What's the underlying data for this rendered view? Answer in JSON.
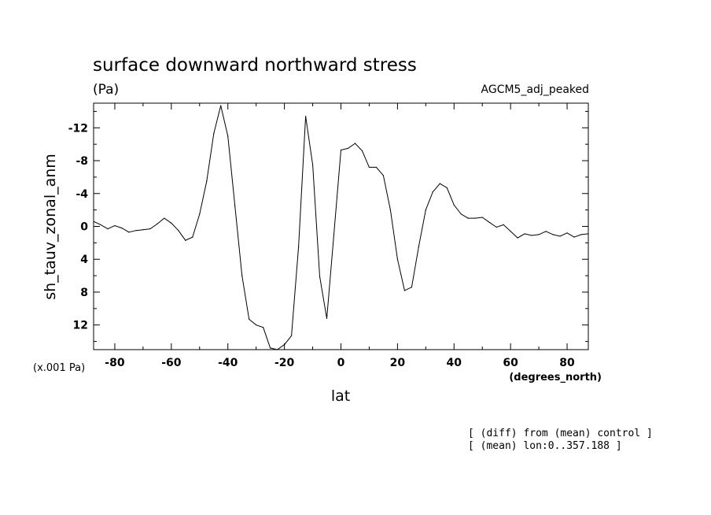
{
  "chart_data": {
    "type": "line",
    "title": "surface downward northward stress",
    "units": "(Pa)",
    "experiment": "AGCM5_adj_peaked",
    "ylabel": "sh_tauv_zonal_anm",
    "yscale_label": "(x.001 Pa)",
    "xlabel": "lat",
    "xunits": "(degrees_north)",
    "notes": [
      "[ (diff) from (mean) control ]",
      "[ (mean) lon:0..357.188 ]"
    ],
    "xlim": [
      -87.5,
      87.5
    ],
    "ylim": [
      15,
      -15
    ],
    "y_inverted": true,
    "xticks": [
      -80,
      -60,
      -40,
      -20,
      0,
      20,
      40,
      60,
      80
    ],
    "xtick_labels": [
      "-80",
      "-60",
      "-40",
      "-20",
      "0",
      "20",
      "40",
      "60",
      "80"
    ],
    "yticks": [
      -12,
      -8,
      -4,
      0,
      4,
      8,
      12
    ],
    "ytick_labels": [
      "-12",
      "-8",
      "-4",
      "0",
      "4",
      "8",
      "12"
    ],
    "series": [
      {
        "x": [
          -87.5,
          -85,
          -82.5,
          -80,
          -77.5,
          -75,
          -72.5,
          -70,
          -67.5,
          -65,
          -62.5,
          -60,
          -57.5,
          -55,
          -52.5,
          -50,
          -47.5,
          -45,
          -42.5,
          -40,
          -37.5,
          -35,
          -32.5,
          -30,
          -27.5,
          -25,
          -22.5,
          -20,
          -17.5,
          -15,
          -12.5,
          -10,
          -7.5,
          -5,
          -2.5,
          0,
          2.5,
          5,
          7.5,
          10,
          12.5,
          15,
          17.5,
          20,
          22.5,
          25,
          27.5,
          30,
          32.5,
          35,
          37.5,
          40,
          42.5,
          45,
          47.5,
          50,
          52.5,
          55,
          57.5,
          60,
          62.5,
          65,
          67.5,
          70,
          72.5,
          75,
          77.5,
          80,
          82.5,
          85,
          87.5
        ],
        "y": [
          -0.6,
          -0.2,
          0.3,
          -0.1,
          0.2,
          0.7,
          0.5,
          0.4,
          0.3,
          -0.3,
          -1.0,
          -0.4,
          0.5,
          1.7,
          1.3,
          -1.5,
          -5.5,
          -11.3,
          -14.7,
          -11.0,
          -2.5,
          6.0,
          11.3,
          12.0,
          12.3,
          14.8,
          15.4,
          14.4,
          13.3,
          2.5,
          -13.4,
          -7.5,
          6.1,
          11.2,
          1.0,
          -9.3,
          -9.5,
          -10.1,
          -9.2,
          -7.2,
          -7.2,
          -6.2,
          -2.0,
          4.0,
          7.8,
          7.4,
          2.5,
          -2.0,
          -4.2,
          -5.2,
          -4.7,
          -2.6,
          -1.5,
          -1.0,
          -1.0,
          -1.1,
          -0.5,
          0.1,
          -0.2,
          0.6,
          1.4,
          0.9,
          1.1,
          1.0,
          0.6,
          1.0,
          1.2,
          0.8,
          1.3,
          1.0,
          0.9
        ]
      }
    ]
  }
}
